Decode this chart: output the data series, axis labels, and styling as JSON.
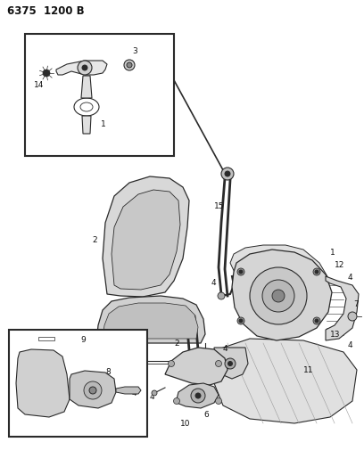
{
  "title": "6375  1200 B",
  "bg": "#ffffff",
  "lc": "#2a2a2a",
  "tc": "#111111",
  "fig_w": 4.08,
  "fig_h": 5.33,
  "dpi": 100,
  "fs": 6.5,
  "fs_title": 8.5
}
